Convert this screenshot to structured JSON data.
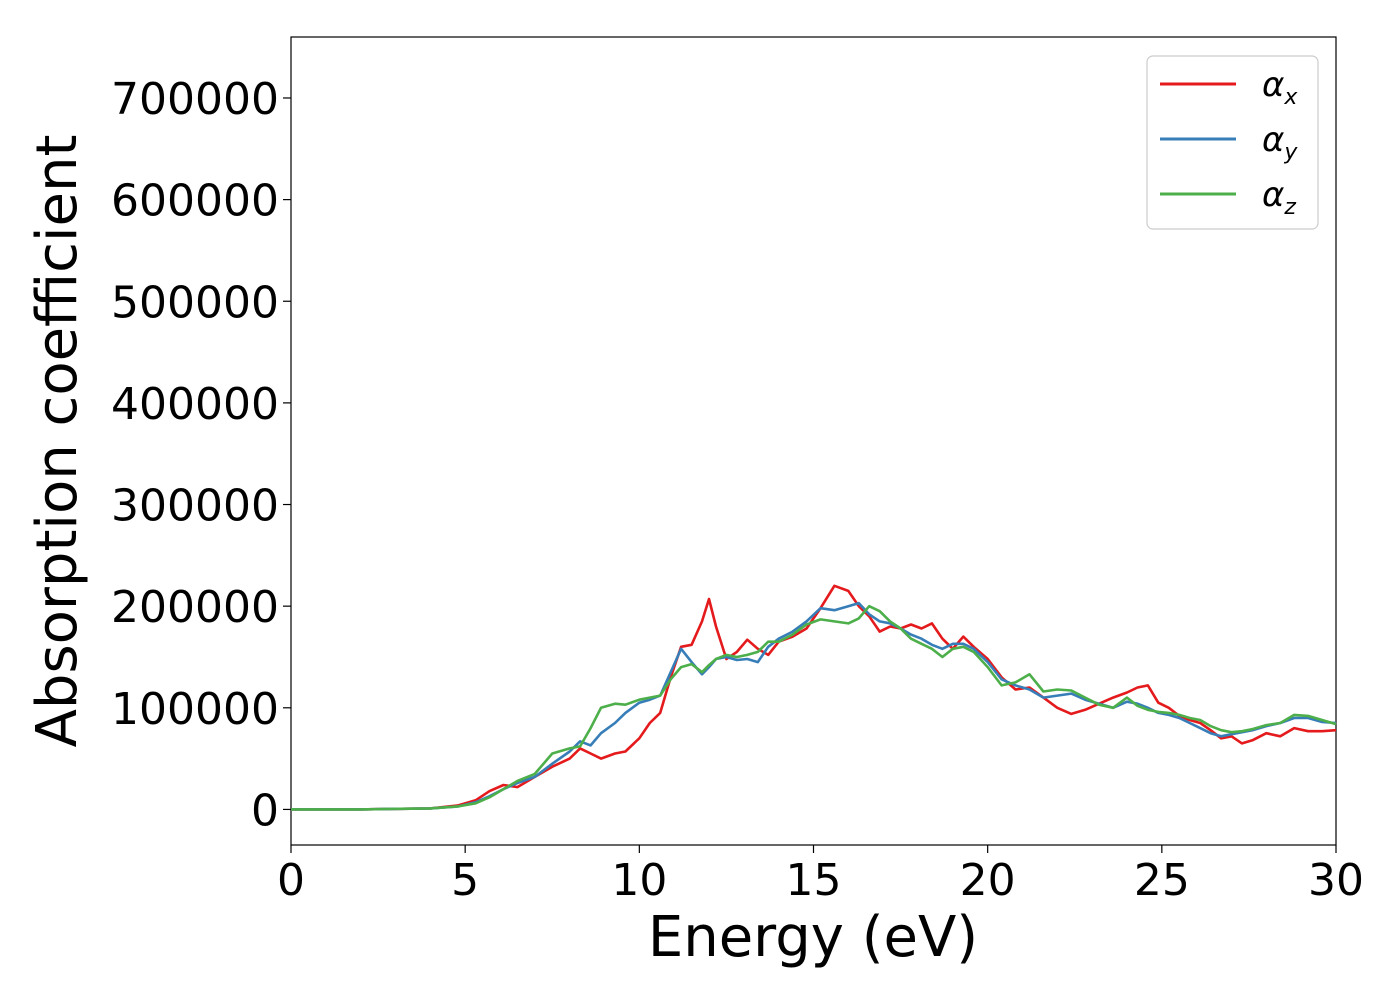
{
  "chart_data": {
    "type": "line",
    "xlabel": "Energy (eV)",
    "ylabel": "Absorption coefficient",
    "xlim": [
      0,
      30
    ],
    "ylim": [
      -35000,
      760000
    ],
    "xticks": [
      0,
      5,
      10,
      15,
      20,
      25,
      30
    ],
    "xtick_labels": [
      "0",
      "5",
      "10",
      "15",
      "20",
      "25",
      "30"
    ],
    "yticks": [
      0,
      100000,
      200000,
      300000,
      400000,
      500000,
      600000,
      700000
    ],
    "ytick_labels": [
      "0",
      "100000",
      "200000",
      "300000",
      "400000",
      "500000",
      "600000",
      "700000"
    ],
    "grid": false,
    "legend_position": "top-right",
    "series": [
      {
        "name": "α",
        "subscript": "x",
        "color": "#e41a1c",
        "x": [
          0,
          2,
          4,
          4.8,
          5.3,
          5.7,
          6.1,
          6.5,
          7.0,
          7.5,
          8.0,
          8.3,
          8.6,
          8.9,
          9.3,
          9.6,
          10.0,
          10.3,
          10.6,
          10.9,
          11.2,
          11.5,
          11.8,
          12.0,
          12.2,
          12.5,
          12.8,
          13.1,
          13.4,
          13.7,
          14.0,
          14.4,
          14.8,
          15.2,
          15.6,
          16.0,
          16.3,
          16.6,
          16.9,
          17.2,
          17.5,
          17.8,
          18.1,
          18.4,
          18.7,
          19.0,
          19.3,
          19.6,
          20.0,
          20.4,
          20.8,
          21.2,
          21.6,
          22.0,
          22.4,
          22.8,
          23.2,
          23.6,
          24.0,
          24.3,
          24.6,
          24.9,
          25.2,
          25.5,
          25.8,
          26.1,
          26.4,
          26.7,
          27.0,
          27.3,
          27.6,
          28.0,
          28.4,
          28.8,
          29.2,
          29.6,
          30.0
        ],
        "y": [
          0,
          0,
          1000,
          4000,
          9000,
          18000,
          24000,
          22000,
          32000,
          42000,
          50000,
          60000,
          55000,
          50000,
          55000,
          57000,
          70000,
          85000,
          95000,
          130000,
          160000,
          162000,
          185000,
          207000,
          180000,
          148000,
          155000,
          167000,
          158000,
          152000,
          165000,
          170000,
          178000,
          198000,
          220000,
          215000,
          200000,
          190000,
          175000,
          180000,
          178000,
          182000,
          178000,
          183000,
          168000,
          158000,
          170000,
          160000,
          148000,
          130000,
          118000,
          120000,
          110000,
          100000,
          94000,
          98000,
          104000,
          110000,
          115000,
          120000,
          122000,
          105000,
          100000,
          92000,
          88000,
          85000,
          78000,
          70000,
          72000,
          65000,
          68000,
          75000,
          72000,
          80000,
          77000,
          77000,
          78000
        ]
      },
      {
        "name": "α",
        "subscript": "y",
        "color": "#377eb8",
        "x": [
          0,
          2,
          4,
          4.8,
          5.3,
          5.7,
          6.1,
          6.5,
          7.0,
          7.5,
          8.0,
          8.3,
          8.6,
          8.9,
          9.3,
          9.6,
          10.0,
          10.3,
          10.6,
          10.9,
          11.2,
          11.5,
          11.8,
          12.0,
          12.2,
          12.5,
          12.8,
          13.1,
          13.4,
          13.7,
          14.0,
          14.4,
          14.8,
          15.2,
          15.6,
          16.0,
          16.3,
          16.6,
          16.9,
          17.2,
          17.5,
          17.8,
          18.1,
          18.4,
          18.7,
          19.0,
          19.3,
          19.6,
          20.0,
          20.4,
          20.8,
          21.2,
          21.6,
          22.0,
          22.4,
          22.8,
          23.2,
          23.6,
          24.0,
          24.3,
          24.6,
          24.9,
          25.2,
          25.5,
          25.8,
          26.1,
          26.4,
          26.7,
          27.0,
          27.3,
          27.6,
          28.0,
          28.4,
          28.8,
          29.2,
          29.6,
          30.0
        ],
        "y": [
          0,
          0,
          1000,
          3000,
          7000,
          13000,
          20000,
          26000,
          32000,
          45000,
          57000,
          67000,
          63000,
          75000,
          85000,
          95000,
          105000,
          108000,
          112000,
          135000,
          158000,
          145000,
          133000,
          140000,
          148000,
          150000,
          147000,
          148000,
          145000,
          160000,
          168000,
          175000,
          185000,
          198000,
          196000,
          200000,
          203000,
          192000,
          185000,
          183000,
          178000,
          172000,
          168000,
          162000,
          158000,
          163000,
          163000,
          158000,
          145000,
          128000,
          122000,
          118000,
          110000,
          112000,
          114000,
          108000,
          104000,
          100000,
          106000,
          104000,
          100000,
          95000,
          93000,
          90000,
          85000,
          80000,
          75000,
          72000,
          74000,
          76000,
          78000,
          82000,
          85000,
          90000,
          90000,
          86000,
          85000
        ]
      },
      {
        "name": "α",
        "subscript": "z",
        "color": "#4daf4a",
        "x": [
          0,
          2,
          4,
          4.8,
          5.3,
          5.7,
          6.1,
          6.5,
          7.0,
          7.5,
          8.0,
          8.3,
          8.6,
          8.9,
          9.3,
          9.6,
          10.0,
          10.3,
          10.6,
          10.9,
          11.2,
          11.5,
          11.8,
          12.0,
          12.2,
          12.5,
          12.8,
          13.1,
          13.4,
          13.7,
          14.0,
          14.4,
          14.8,
          15.2,
          15.6,
          16.0,
          16.3,
          16.6,
          16.9,
          17.2,
          17.5,
          17.8,
          18.1,
          18.4,
          18.7,
          19.0,
          19.3,
          19.6,
          20.0,
          20.4,
          20.8,
          21.2,
          21.6,
          22.0,
          22.4,
          22.8,
          23.2,
          23.6,
          24.0,
          24.3,
          24.6,
          24.9,
          25.2,
          25.5,
          25.8,
          26.1,
          26.4,
          26.7,
          27.0,
          27.3,
          27.6,
          28.0,
          28.4,
          28.8,
          29.2,
          29.6,
          30.0
        ],
        "y": [
          0,
          0,
          1000,
          3000,
          6000,
          12000,
          20000,
          28000,
          35000,
          55000,
          60000,
          62000,
          80000,
          100000,
          104000,
          103000,
          108000,
          110000,
          112000,
          128000,
          140000,
          143000,
          135000,
          142000,
          148000,
          152000,
          150000,
          152000,
          155000,
          165000,
          165000,
          172000,
          182000,
          187000,
          185000,
          183000,
          188000,
          200000,
          195000,
          185000,
          178000,
          168000,
          163000,
          158000,
          150000,
          158000,
          160000,
          155000,
          140000,
          122000,
          125000,
          133000,
          116000,
          118000,
          117000,
          110000,
          103000,
          100000,
          110000,
          102000,
          98000,
          96000,
          95000,
          93000,
          90000,
          88000,
          82000,
          78000,
          76000,
          77000,
          79000,
          83000,
          85000,
          93000,
          92000,
          88000,
          84000
        ]
      }
    ]
  }
}
